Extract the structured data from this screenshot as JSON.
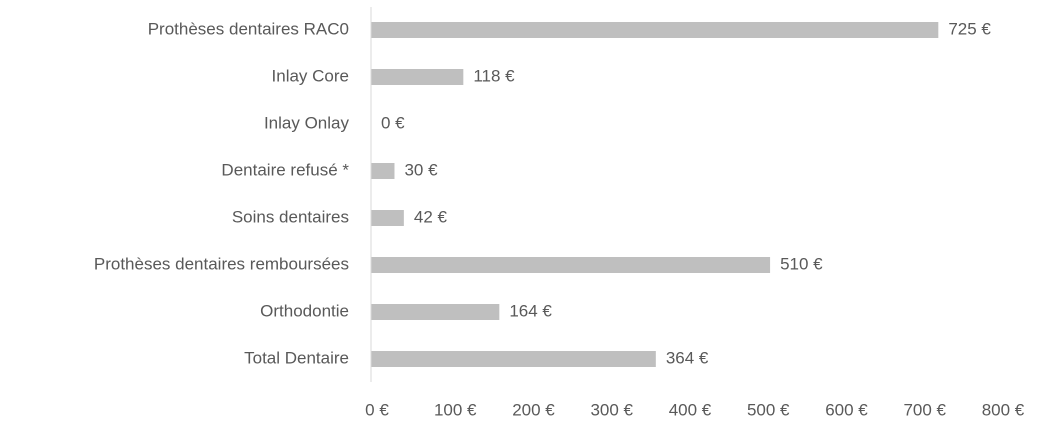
{
  "chart_data": {
    "type": "hbar",
    "categories": [
      "Prothèses dentaires RAC0",
      "Inlay Core",
      "Inlay Onlay",
      "Dentaire refusé *",
      "Soins dentaires",
      "Prothèses dentaires remboursées",
      "Orthodontie",
      "Total Dentaire"
    ],
    "values": [
      725,
      118,
      0,
      30,
      42,
      510,
      164,
      364
    ],
    "value_labels": [
      "725 €",
      "118 €",
      "0 €",
      "30 €",
      "42 €",
      "510 €",
      "164 €",
      "364 €"
    ],
    "color": "#bfbfbf",
    "xlim": [
      0,
      800
    ],
    "xticks": [
      {
        "value": 0,
        "label": "0 €"
      },
      {
        "value": 100,
        "label": "100 €"
      },
      {
        "value": 200,
        "label": "200 €"
      },
      {
        "value": 300,
        "label": "300 €"
      },
      {
        "value": 400,
        "label": "400 €"
      },
      {
        "value": 500,
        "label": "500 €"
      },
      {
        "value": 600,
        "label": "600 €"
      },
      {
        "value": 700,
        "label": "700 €"
      },
      {
        "value": 800,
        "label": "800 €"
      }
    ],
    "grid": false
  }
}
